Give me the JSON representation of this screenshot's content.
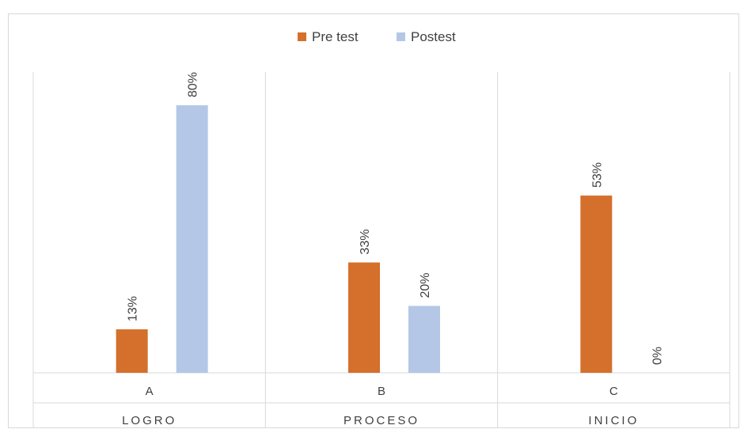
{
  "chart_data": {
    "type": "bar",
    "categories": [
      "A",
      "B",
      "C"
    ],
    "category_groups": [
      "LOGRO",
      "PROCESO",
      "INICIO"
    ],
    "series": [
      {
        "name": "Pre test",
        "values": [
          13,
          33,
          53
        ],
        "labels": [
          "13%",
          "33%",
          "53%"
        ],
        "color": "#D4702B"
      },
      {
        "name": "Postest",
        "values": [
          80,
          20,
          0
        ],
        "labels": [
          "80%",
          "20%",
          "0%"
        ],
        "color": "#B4C7E7"
      }
    ],
    "ylim": [
      0,
      80
    ],
    "legend_position": "top-center",
    "grid": false,
    "data_labels": "rotated-vertical"
  }
}
